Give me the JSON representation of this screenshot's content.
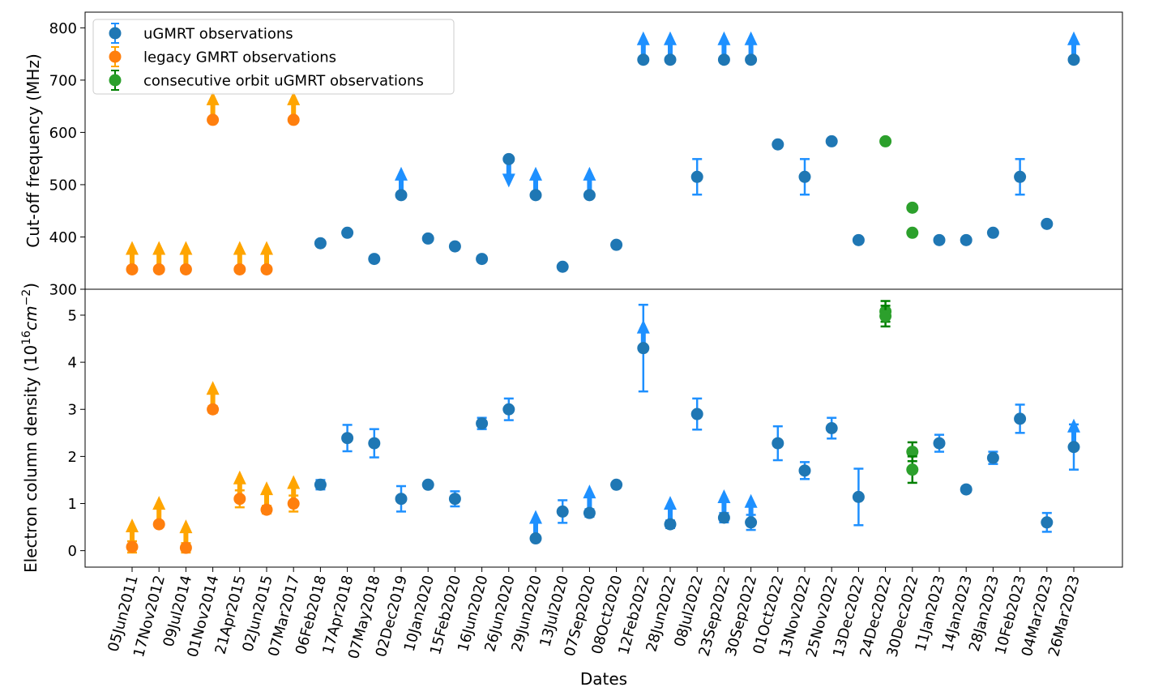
{
  "chart_data": {
    "type": "scatter",
    "xlabel": "Dates",
    "dates": [
      "05Jun2011",
      "17Nov2012",
      "09Jul2014",
      "01Nov2014",
      "21Apr2015",
      "02Jun2015",
      "07Mar2017",
      "06Feb2018",
      "17Apr2018",
      "07May2018",
      "02Dec2019",
      "10Jan2020",
      "15Feb2020",
      "16Jun2020",
      "26Jun2020",
      "29Jun2020",
      "13Jul2020",
      "07Sep2020",
      "08Oct2020",
      "12Feb2022",
      "28Jun2022",
      "08Jul2022",
      "23Sep2022",
      "30Sep2022",
      "01Oct2022",
      "13Nov2022",
      "25Nov2022",
      "13Dec2022",
      "24Dec2022",
      "30Dec2022",
      "11Jan2023",
      "14Jan2023",
      "28Jan2023",
      "10Feb2023",
      "04Mar2023",
      "26Mar2023"
    ],
    "legend": [
      {
        "label": "uGMRT observations",
        "color": "#1f77b4"
      },
      {
        "label": "legacy GMRT observations",
        "color": "#ff7f0e"
      },
      {
        "label": "consecutive orbit uGMRT observations",
        "color": "#2ca02c"
      }
    ],
    "colors": {
      "ugmrt": "#1f77b4",
      "legacy": "#ff7f0e",
      "consecutive": "#2ca02c",
      "ugmrt_arrow": "#1e90ff",
      "legacy_arrow": "#ffa500",
      "consecutive_err": "#008000"
    },
    "top": {
      "ylabel": "Cut-off frequency (MHz)",
      "ylim": [
        300,
        830
      ],
      "yticks": [
        300,
        400,
        500,
        600,
        700,
        800
      ],
      "points": [
        {
          "i": 0,
          "s": "legacy",
          "y": 338,
          "limit": "lower"
        },
        {
          "i": 1,
          "s": "legacy",
          "y": 338,
          "limit": "lower"
        },
        {
          "i": 2,
          "s": "legacy",
          "y": 338,
          "limit": "lower"
        },
        {
          "i": 3,
          "s": "legacy",
          "y": 624,
          "limit": "lower"
        },
        {
          "i": 4,
          "s": "legacy",
          "y": 338,
          "limit": "lower"
        },
        {
          "i": 5,
          "s": "legacy",
          "y": 338,
          "limit": "lower"
        },
        {
          "i": 6,
          "s": "legacy",
          "y": 624,
          "limit": "lower"
        },
        {
          "i": 7,
          "s": "ugmrt",
          "y": 388
        },
        {
          "i": 8,
          "s": "ugmrt",
          "y": 408
        },
        {
          "i": 9,
          "s": "ugmrt",
          "y": 358
        },
        {
          "i": 10,
          "s": "ugmrt",
          "y": 480,
          "limit": "lower"
        },
        {
          "i": 11,
          "s": "ugmrt",
          "y": 397
        },
        {
          "i": 12,
          "s": "ugmrt",
          "y": 382
        },
        {
          "i": 13,
          "s": "ugmrt",
          "y": 358
        },
        {
          "i": 14,
          "s": "ugmrt",
          "y": 549,
          "limit": "upper"
        },
        {
          "i": 15,
          "s": "ugmrt",
          "y": 480,
          "limit": "lower"
        },
        {
          "i": 16,
          "s": "ugmrt",
          "y": 343
        },
        {
          "i": 17,
          "s": "ugmrt",
          "y": 480,
          "limit": "lower"
        },
        {
          "i": 18,
          "s": "ugmrt",
          "y": 385
        },
        {
          "i": 19,
          "s": "ugmrt",
          "y": 739,
          "limit": "lower"
        },
        {
          "i": 20,
          "s": "ugmrt",
          "y": 739,
          "limit": "lower"
        },
        {
          "i": 21,
          "s": "ugmrt",
          "y": 515,
          "err": 34
        },
        {
          "i": 22,
          "s": "ugmrt",
          "y": 739,
          "limit": "lower"
        },
        {
          "i": 23,
          "s": "ugmrt",
          "y": 739,
          "limit": "lower"
        },
        {
          "i": 24,
          "s": "ugmrt",
          "y": 577
        },
        {
          "i": 25,
          "s": "ugmrt",
          "y": 515,
          "err": 34
        },
        {
          "i": 26,
          "s": "ugmrt",
          "y": 583
        },
        {
          "i": 27,
          "s": "ugmrt",
          "y": 394
        },
        {
          "i": 28,
          "s": "consecutive",
          "y": 583
        },
        {
          "i": 29,
          "s": "consecutive",
          "y": 456
        },
        {
          "i": 29,
          "s": "consecutive",
          "y": 408
        },
        {
          "i": 30,
          "s": "ugmrt",
          "y": 394
        },
        {
          "i": 31,
          "s": "ugmrt",
          "y": 394
        },
        {
          "i": 32,
          "s": "ugmrt",
          "y": 408
        },
        {
          "i": 33,
          "s": "ugmrt",
          "y": 515,
          "err": 34
        },
        {
          "i": 34,
          "s": "ugmrt",
          "y": 425
        },
        {
          "i": 35,
          "s": "ugmrt",
          "y": 739,
          "limit": "lower"
        }
      ]
    },
    "bottom": {
      "ylabel_main": "Electron column density (10",
      "ylabel_exp": "16",
      "ylabel_unit": "cm",
      "ylabel_unit_exp": "−2",
      "ylabel_close": ")",
      "ylim": [
        -0.35,
        5.55
      ],
      "yticks": [
        0,
        1,
        2,
        3,
        4,
        5
      ],
      "points": [
        {
          "i": 0,
          "s": "legacy",
          "y": 0.08,
          "err": 0.12,
          "limit": "lower"
        },
        {
          "i": 1,
          "s": "legacy",
          "y": 0.56,
          "err": 0.05,
          "limit": "lower"
        },
        {
          "i": 2,
          "s": "legacy",
          "y": 0.06,
          "err": 0.1,
          "limit": "lower"
        },
        {
          "i": 3,
          "s": "legacy",
          "y": 3.0,
          "err": 0.07,
          "limit": "lower"
        },
        {
          "i": 4,
          "s": "legacy",
          "y": 1.1,
          "err": 0.18,
          "limit": "lower"
        },
        {
          "i": 5,
          "s": "legacy",
          "y": 0.87,
          "err": 0.08,
          "limit": "lower"
        },
        {
          "i": 6,
          "s": "legacy",
          "y": 1.0,
          "err": 0.17,
          "limit": "lower"
        },
        {
          "i": 7,
          "s": "ugmrt",
          "y": 1.4,
          "err": 0.1
        },
        {
          "i": 8,
          "s": "ugmrt",
          "y": 2.39,
          "err": 0.28
        },
        {
          "i": 9,
          "s": "ugmrt",
          "y": 2.28,
          "err": 0.3
        },
        {
          "i": 10,
          "s": "ugmrt",
          "y": 1.1,
          "err": 0.27
        },
        {
          "i": 11,
          "s": "ugmrt",
          "y": 1.4,
          "err": 0.06
        },
        {
          "i": 12,
          "s": "ugmrt",
          "y": 1.1,
          "err": 0.16
        },
        {
          "i": 13,
          "s": "ugmrt",
          "y": 2.7,
          "err": 0.12
        },
        {
          "i": 14,
          "s": "ugmrt",
          "y": 3.0,
          "err": 0.23
        },
        {
          "i": 15,
          "s": "ugmrt",
          "y": 0.26,
          "err": 0.06,
          "limit": "lower"
        },
        {
          "i": 16,
          "s": "ugmrt",
          "y": 0.83,
          "err": 0.24
        },
        {
          "i": 17,
          "s": "ugmrt",
          "y": 0.8,
          "err": 0.08,
          "limit": "lower"
        },
        {
          "i": 18,
          "s": "ugmrt",
          "y": 1.4,
          "err": 0.05
        },
        {
          "i": 19,
          "s": "ugmrt",
          "y": 4.3,
          "err": 0.92,
          "limit": "lower"
        },
        {
          "i": 20,
          "s": "ugmrt",
          "y": 0.56,
          "err": 0.08,
          "limit": "lower"
        },
        {
          "i": 21,
          "s": "ugmrt",
          "y": 2.9,
          "err": 0.33
        },
        {
          "i": 22,
          "s": "ugmrt",
          "y": 0.7,
          "err": 0.1,
          "limit": "lower"
        },
        {
          "i": 23,
          "s": "ugmrt",
          "y": 0.6,
          "err": 0.16,
          "limit": "lower"
        },
        {
          "i": 24,
          "s": "ugmrt",
          "y": 2.28,
          "err": 0.36
        },
        {
          "i": 25,
          "s": "ugmrt",
          "y": 1.7,
          "err": 0.18
        },
        {
          "i": 26,
          "s": "ugmrt",
          "y": 2.6,
          "err": 0.22
        },
        {
          "i": 27,
          "s": "ugmrt",
          "y": 1.14,
          "err": 0.6
        },
        {
          "i": 28,
          "s": "consecutive",
          "y": 5.08,
          "err": 0.22
        },
        {
          "i": 28,
          "s": "consecutive",
          "y": 4.98,
          "err": 0.22
        },
        {
          "i": 29,
          "s": "consecutive",
          "y": 2.1,
          "err": 0.2
        },
        {
          "i": 29,
          "s": "consecutive",
          "y": 1.72,
          "err": 0.28
        },
        {
          "i": 30,
          "s": "ugmrt",
          "y": 2.28,
          "err": 0.18
        },
        {
          "i": 31,
          "s": "ugmrt",
          "y": 1.3,
          "err": 0.06
        },
        {
          "i": 32,
          "s": "ugmrt",
          "y": 1.97,
          "err": 0.13
        },
        {
          "i": 33,
          "s": "ugmrt",
          "y": 2.8,
          "err": 0.3
        },
        {
          "i": 34,
          "s": "ugmrt",
          "y": 0.6,
          "err": 0.2
        },
        {
          "i": 35,
          "s": "ugmrt",
          "y": 2.2,
          "err": 0.48,
          "limit": "lower"
        }
      ]
    }
  }
}
